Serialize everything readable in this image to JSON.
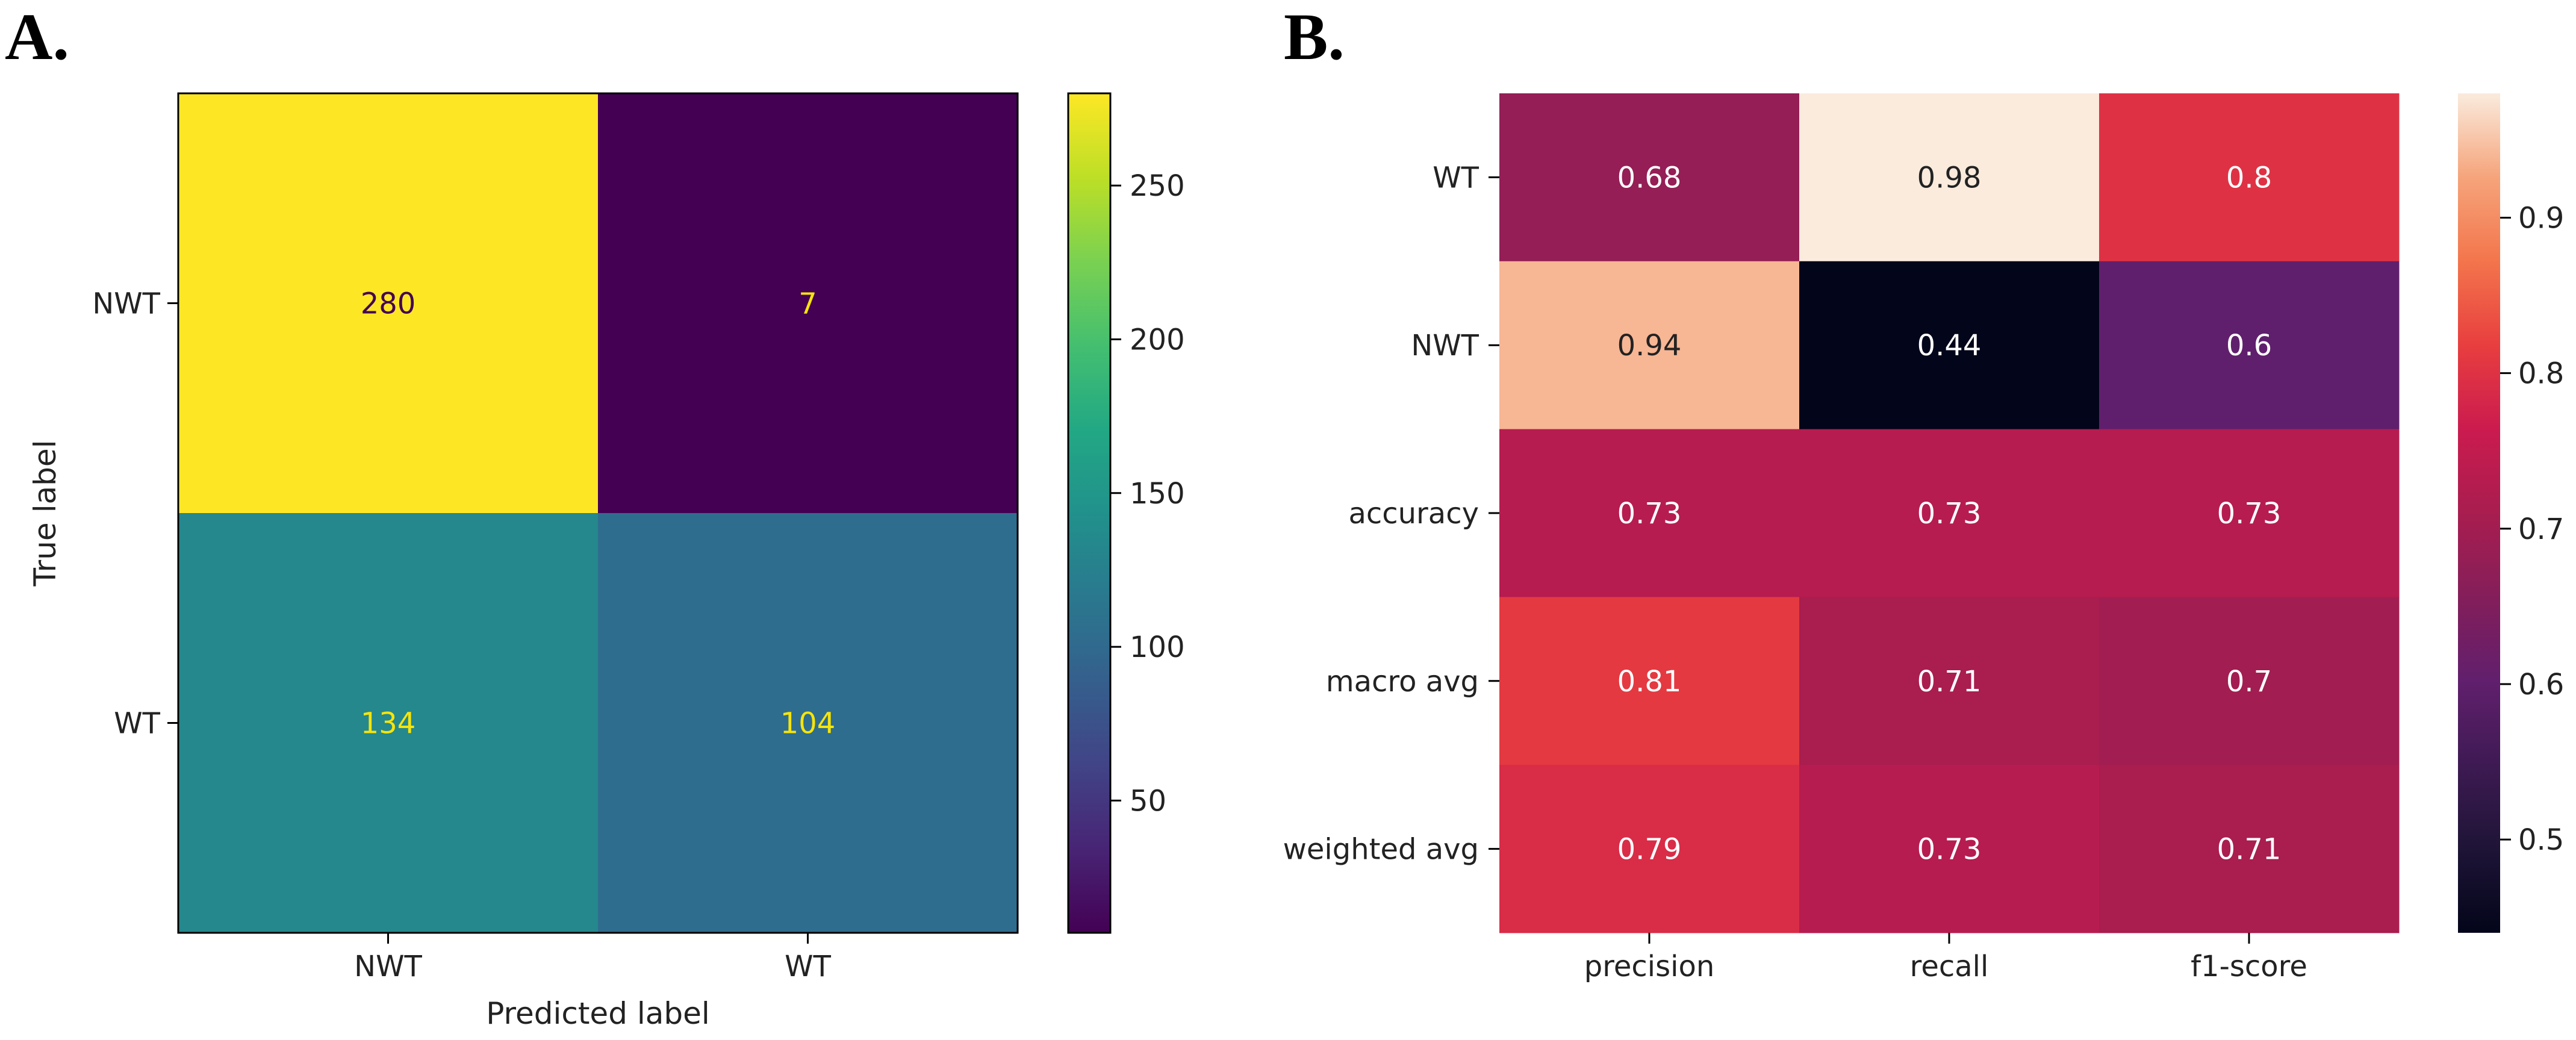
{
  "chart_data": [
    {
      "panel": "A.",
      "type": "heatmap",
      "title": "",
      "xlabel": "Predicted label",
      "ylabel": "True label",
      "x_categories": [
        "NWT",
        "WT"
      ],
      "y_categories": [
        "NWT",
        "WT"
      ],
      "values": [
        [
          280,
          7
        ],
        [
          134,
          104
        ]
      ],
      "colormap": "viridis",
      "color_range": [
        7,
        280
      ],
      "colorbar_ticks": [
        50,
        100,
        150,
        200,
        250
      ]
    },
    {
      "panel": "B.",
      "type": "heatmap",
      "title": "",
      "xlabel": "",
      "ylabel": "",
      "x_categories": [
        "precision",
        "recall",
        "f1-score"
      ],
      "y_categories": [
        "WT",
        "NWT",
        "accuracy",
        "macro avg",
        "weighted avg"
      ],
      "values": [
        [
          0.68,
          0.98,
          0.8
        ],
        [
          0.94,
          0.44,
          0.6
        ],
        [
          0.73,
          0.73,
          0.73
        ],
        [
          0.81,
          0.71,
          0.7
        ],
        [
          0.79,
          0.73,
          0.71
        ]
      ],
      "value_labels": [
        [
          "0.68",
          "0.98",
          "0.8"
        ],
        [
          "0.94",
          "0.44",
          "0.6"
        ],
        [
          "0.73",
          "0.73",
          "0.73"
        ],
        [
          "0.81",
          "0.71",
          "0.7"
        ],
        [
          "0.79",
          "0.73",
          "0.71"
        ]
      ],
      "colormap": "rocket",
      "color_range": [
        0.44,
        0.98
      ],
      "colorbar_ticks": [
        0.5,
        0.6,
        0.7,
        0.8,
        0.9
      ]
    }
  ],
  "colors": {
    "axis": "#000000",
    "text_dark": "#222222",
    "text_light": "#ffffff",
    "text_yellow": "#f6e40c",
    "text_purple": "#440154"
  }
}
